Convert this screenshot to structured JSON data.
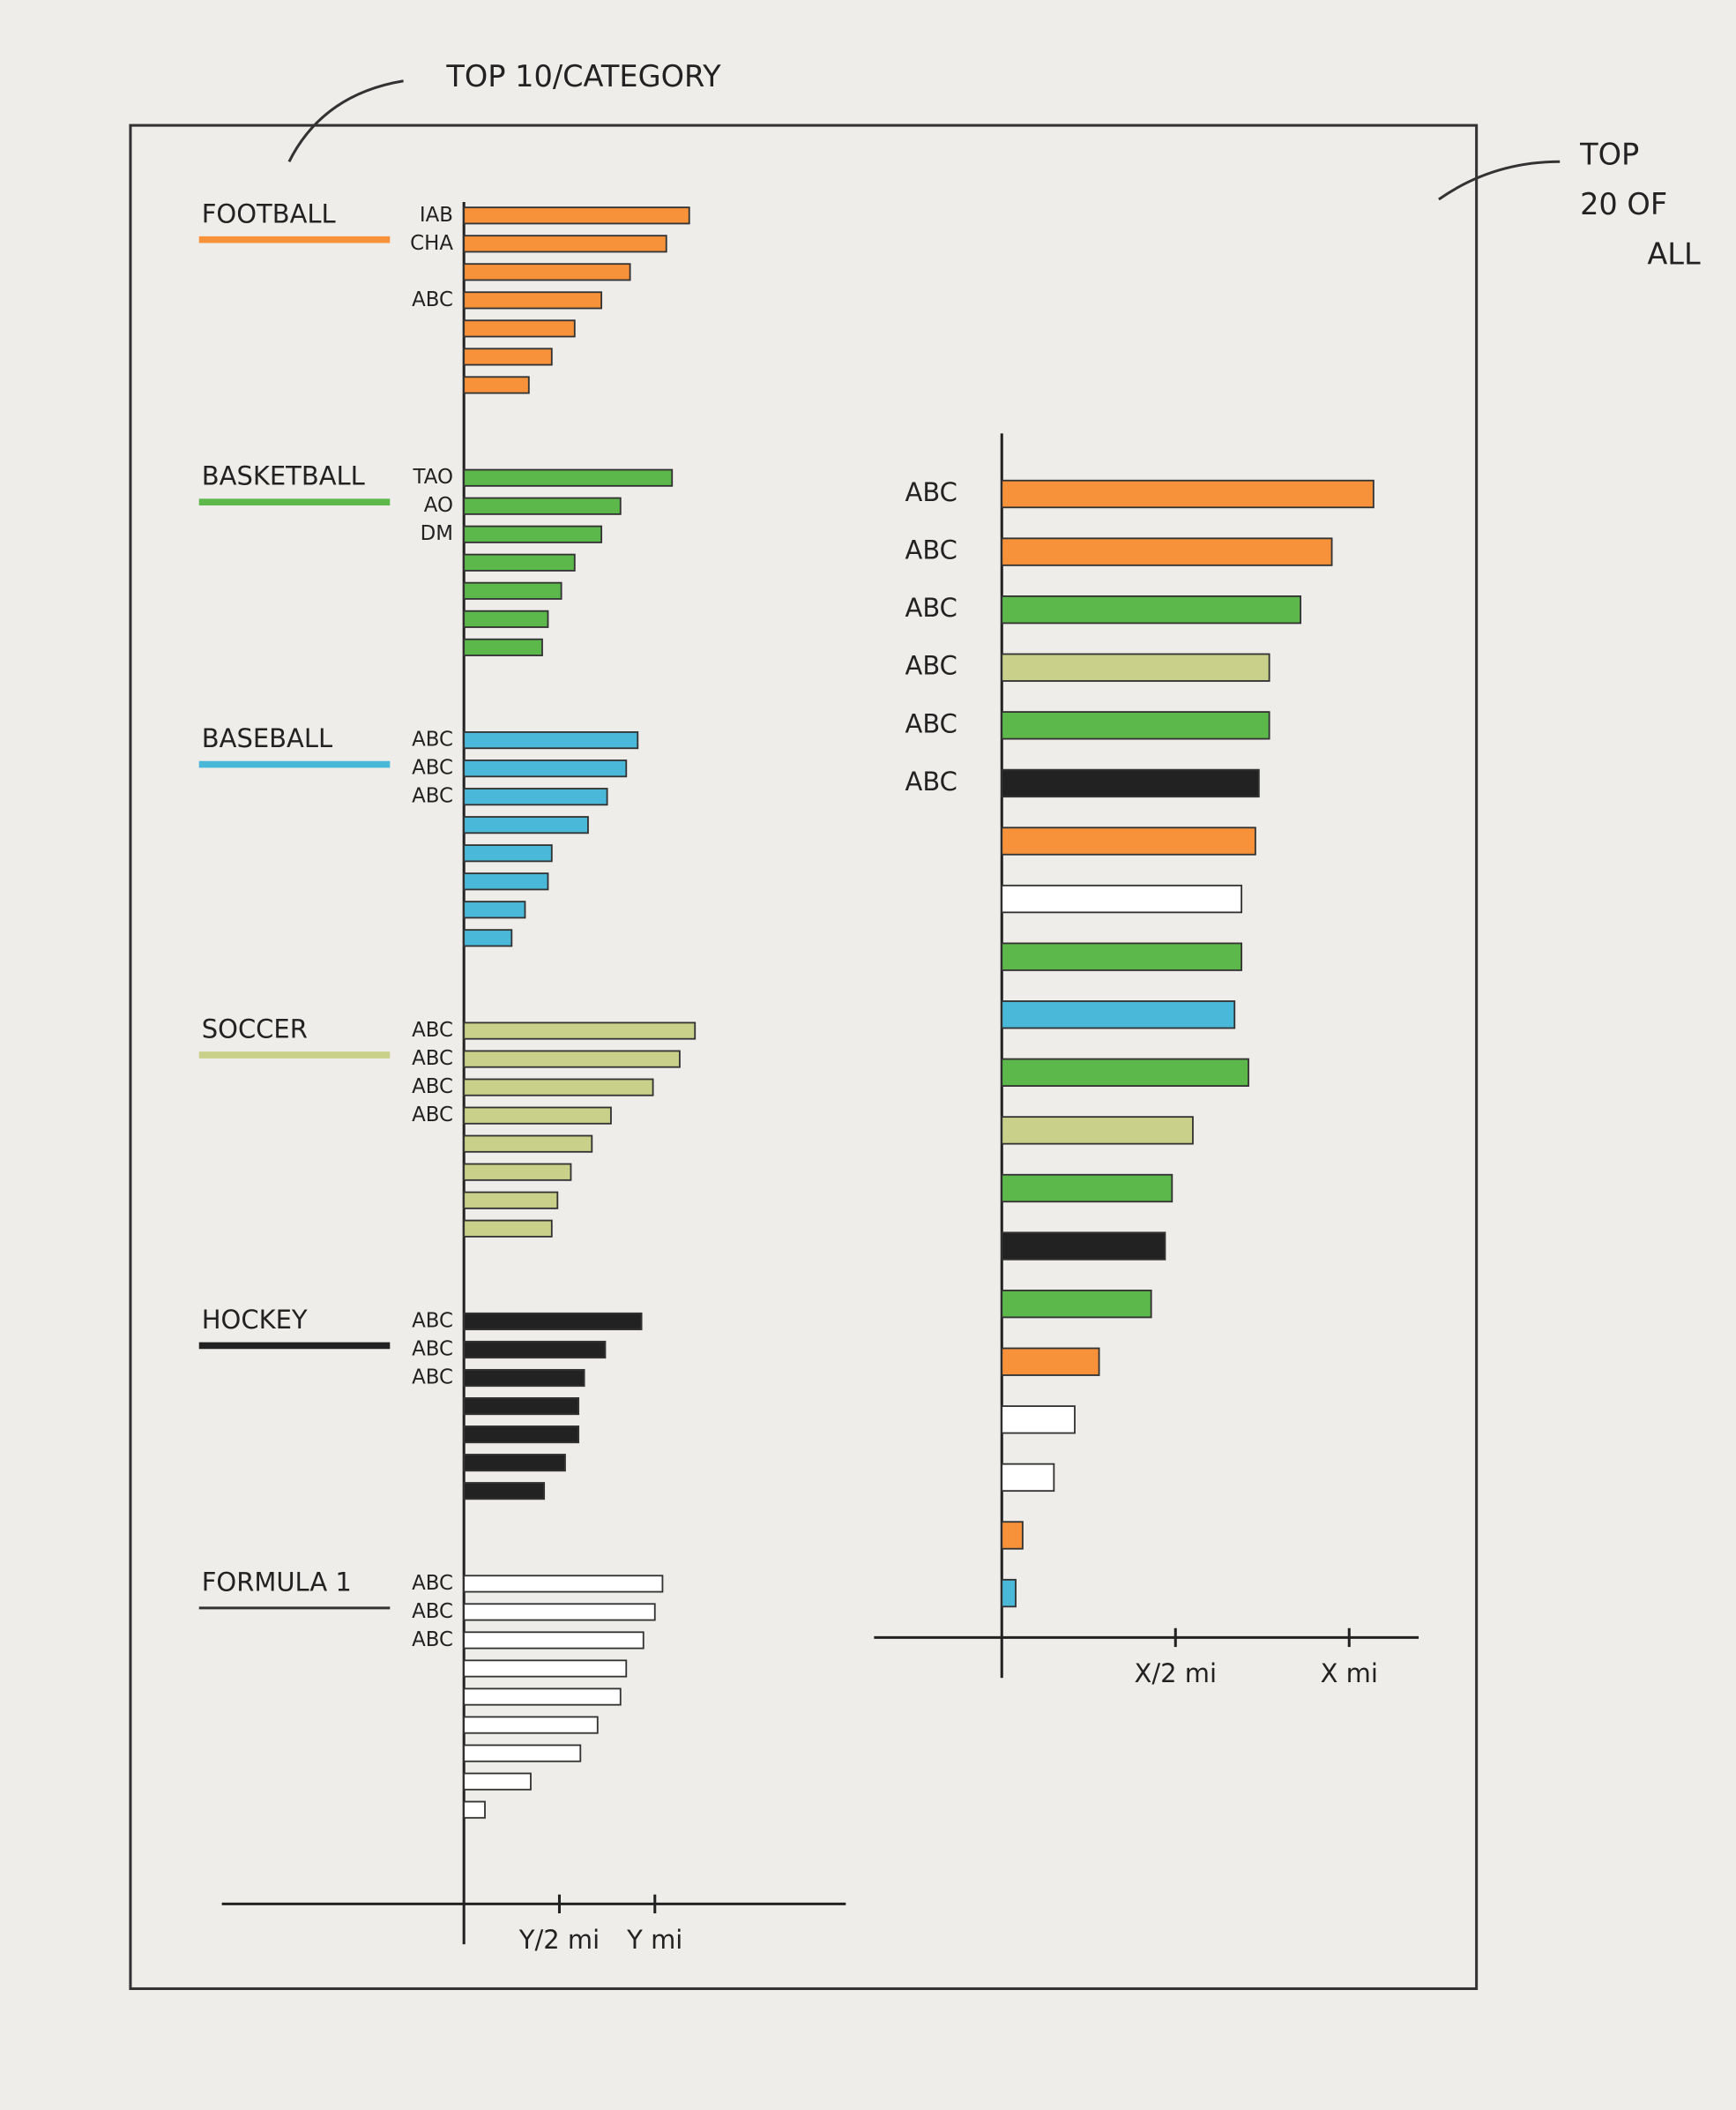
{
  "annotations": {
    "top_per_category": "TOP 10/CATEGORY",
    "top_overall": [
      "TOP",
      "20 OF",
      "ALL"
    ]
  },
  "chart_data": [
    {
      "type": "grouped-hbar",
      "xlim": [
        0,
        2
      ],
      "xticks": [
        {
          "value": 0.5,
          "label": "Y/2 mi"
        },
        {
          "value": 1,
          "label": "Y mi"
        }
      ],
      "series": [
        {
          "name": "FOOTBALL",
          "color": "#f7923a",
          "categories": [
            "IAB",
            "CHA",
            null,
            "ABC",
            null,
            null,
            null
          ],
          "values": [
            1.18,
            1.06,
            0.87,
            0.72,
            0.58,
            0.46,
            0.34
          ]
        },
        {
          "name": "BASKETBALL",
          "color": "#5cb84a",
          "categories": [
            "TAO",
            "AO",
            "DM",
            null,
            null,
            null,
            null
          ],
          "values": [
            1.09,
            0.82,
            0.72,
            0.58,
            0.51,
            0.44,
            0.41
          ]
        },
        {
          "name": "BASEBALL",
          "color": "#4ab8d8",
          "categories": [
            "ABC",
            "ABC",
            "ABC",
            null,
            null,
            null,
            null,
            null
          ],
          "values": [
            0.91,
            0.85,
            0.75,
            0.65,
            0.46,
            0.44,
            0.32,
            0.25
          ]
        },
        {
          "name": "SOCCER",
          "color": "#c8d08a",
          "categories": [
            "ABC",
            "ABC",
            "ABC",
            "ABC",
            null,
            null,
            null,
            null
          ],
          "values": [
            1.21,
            1.13,
            0.99,
            0.77,
            0.67,
            0.56,
            0.49,
            0.46
          ]
        },
        {
          "name": "HOCKEY",
          "color": "#222222",
          "categories": [
            "ABC",
            "ABC",
            "ABC",
            null,
            null,
            null,
            null
          ],
          "values": [
            0.93,
            0.74,
            0.63,
            0.6,
            0.6,
            0.53,
            0.42
          ]
        },
        {
          "name": "FORMULA 1",
          "color": "#ffffff",
          "categories": [
            "ABC",
            "ABC",
            "ABC",
            null,
            null,
            null,
            null,
            null,
            null
          ],
          "values": [
            1.04,
            1.0,
            0.94,
            0.85,
            0.82,
            0.7,
            0.61,
            0.35,
            0.11
          ]
        }
      ]
    },
    {
      "type": "hbar",
      "xlim": [
        0,
        1.2
      ],
      "xticks": [
        {
          "value": 0.5,
          "label": "X/2 mi"
        },
        {
          "value": 1,
          "label": "X mi"
        }
      ],
      "categories": [
        "ABC",
        "ABC",
        "ABC",
        "ABC",
        "ABC",
        "ABC",
        null,
        null,
        null,
        null,
        null,
        null,
        null,
        null,
        null,
        null,
        null,
        null,
        null,
        null
      ],
      "values": [
        1.07,
        0.95,
        0.86,
        0.77,
        0.77,
        0.74,
        0.73,
        0.69,
        0.69,
        0.67,
        0.71,
        0.55,
        0.49,
        0.47,
        0.43,
        0.28,
        0.21,
        0.15,
        0.06,
        0.04
      ],
      "colors": [
        "#f7923a",
        "#f7923a",
        "#5cb84a",
        "#c8d08a",
        "#5cb84a",
        "#222222",
        "#f7923a",
        "#ffffff",
        "#5cb84a",
        "#4ab8d8",
        "#5cb84a",
        "#c8d08a",
        "#5cb84a",
        "#222222",
        "#5cb84a",
        "#f7923a",
        "#ffffff",
        "#ffffff",
        "#f7923a",
        "#4ab8d8"
      ]
    }
  ]
}
